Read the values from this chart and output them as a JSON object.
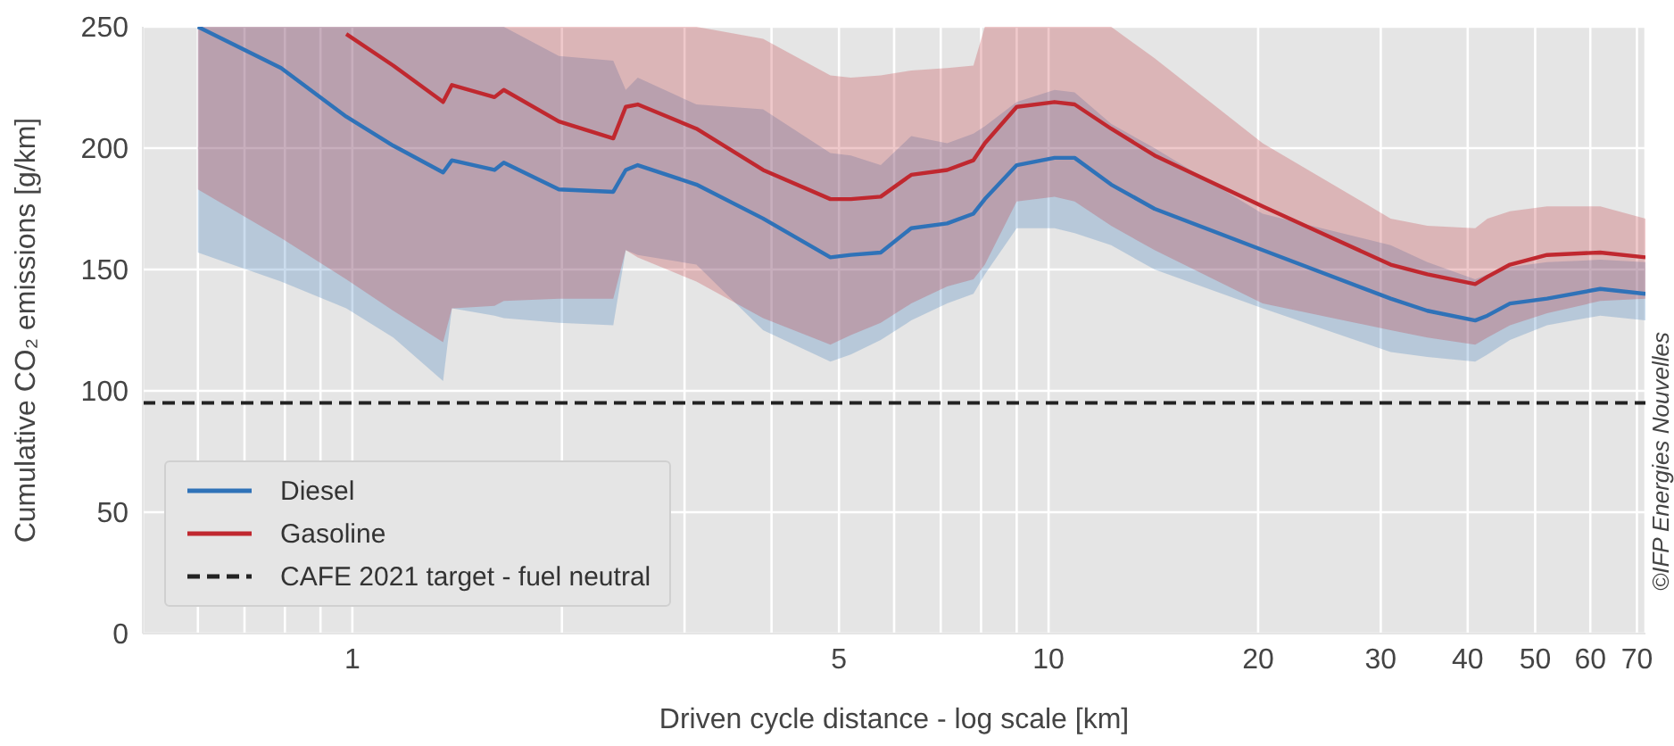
{
  "chart_data": {
    "type": "line",
    "xlabel": "Driven cycle distance - log scale [km]",
    "ylabel": "Cumulative CO₂ emissions [g/km]",
    "x": [
      0.6,
      0.79,
      0.98,
      1.145,
      1.35,
      1.39,
      1.6,
      1.65,
      1.98,
      2.37,
      2.47,
      2.57,
      3.12,
      3.89,
      4.86,
      5.2,
      5.74,
      6.35,
      7.15,
      7.8,
      8.1,
      9.0,
      10.2,
      10.9,
      12.3,
      14.2,
      20.3,
      31,
      35,
      41,
      42.7,
      46,
      52,
      62,
      72
    ],
    "series": [
      {
        "name": "Diesel",
        "color": "#2f72b8",
        "values": [
          250,
          233,
          213,
          201,
          190,
          195,
          191,
          194,
          183,
          182,
          191,
          193,
          185,
          171,
          155,
          156,
          157,
          167,
          169,
          173,
          179,
          193,
          196,
          196,
          185,
          175,
          158,
          138,
          133,
          129,
          131,
          136,
          138,
          142,
          140
        ],
        "lower": [
          157,
          145,
          134,
          122,
          104,
          134,
          131,
          130,
          128,
          127,
          158,
          156,
          152,
          125,
          112,
          115,
          121,
          129,
          136,
          140,
          148,
          167,
          167,
          165,
          160,
          150,
          134,
          116,
          114,
          112,
          115,
          121,
          127,
          131,
          129
        ],
        "upper": [
          250,
          250,
          250,
          250,
          250,
          250,
          250,
          250,
          238,
          236,
          224,
          229,
          218,
          216,
          198,
          197,
          193,
          205,
          202,
          206,
          209,
          219,
          224,
          223,
          210,
          200,
          173,
          160,
          153,
          146,
          148,
          151,
          153,
          154,
          153
        ]
      },
      {
        "name": "Gasoline",
        "color": "#c0282f",
        "values": [
          null,
          null,
          247,
          234,
          219,
          226,
          221,
          224,
          211,
          204,
          217,
          218,
          208,
          191,
          179,
          179,
          180,
          189,
          191,
          195,
          202,
          217,
          219,
          218,
          208,
          197,
          176,
          152,
          148,
          144,
          147,
          152,
          156,
          157,
          155
        ],
        "lower": [
          183,
          163,
          146,
          133,
          120,
          134,
          135,
          137,
          138,
          138,
          158,
          155,
          145,
          130,
          119,
          123,
          128,
          136,
          143,
          146,
          152,
          178,
          180,
          178,
          168,
          158,
          136,
          125,
          122,
          119,
          122,
          127,
          132,
          137,
          138
        ],
        "upper": [
          250,
          250,
          250,
          250,
          250,
          250,
          250,
          250,
          250,
          250,
          250,
          250,
          250,
          245,
          230,
          229,
          230,
          232,
          233,
          234,
          250,
          250,
          250,
          250,
          250,
          237,
          202,
          171,
          168,
          167,
          171,
          174,
          176,
          176,
          171
        ]
      }
    ],
    "ref_lines": [
      {
        "axis": "y",
        "value": 95,
        "label": "CAFE 2021 target - fuel neutral",
        "color": "#222222",
        "line_style": "dashed"
      }
    ],
    "xlim": [
      0.5,
      72
    ],
    "log": "x",
    "xticks": [
      {
        "value": 0.6,
        "label": null
      },
      {
        "value": 0.7,
        "label": null
      },
      {
        "value": 0.8,
        "label": null
      },
      {
        "value": 0.9,
        "label": null
      },
      1,
      {
        "value": 2,
        "label": null
      },
      {
        "value": 3,
        "label": null
      },
      {
        "value": 4,
        "label": null
      },
      5,
      {
        "value": 6,
        "label": null
      },
      {
        "value": 7,
        "label": null
      },
      {
        "value": 8,
        "label": null
      },
      {
        "value": 9,
        "label": null
      },
      10,
      20,
      30,
      40,
      50,
      60,
      70
    ],
    "ylim": [
      0,
      250
    ],
    "yticks": [
      0,
      50,
      100,
      150,
      200,
      250
    ],
    "grid": true,
    "legend": "bottom left",
    "line_style": "solid",
    "marker": "none",
    "annotations": [
      "©IFP Energies Nouvelles"
    ]
  }
}
